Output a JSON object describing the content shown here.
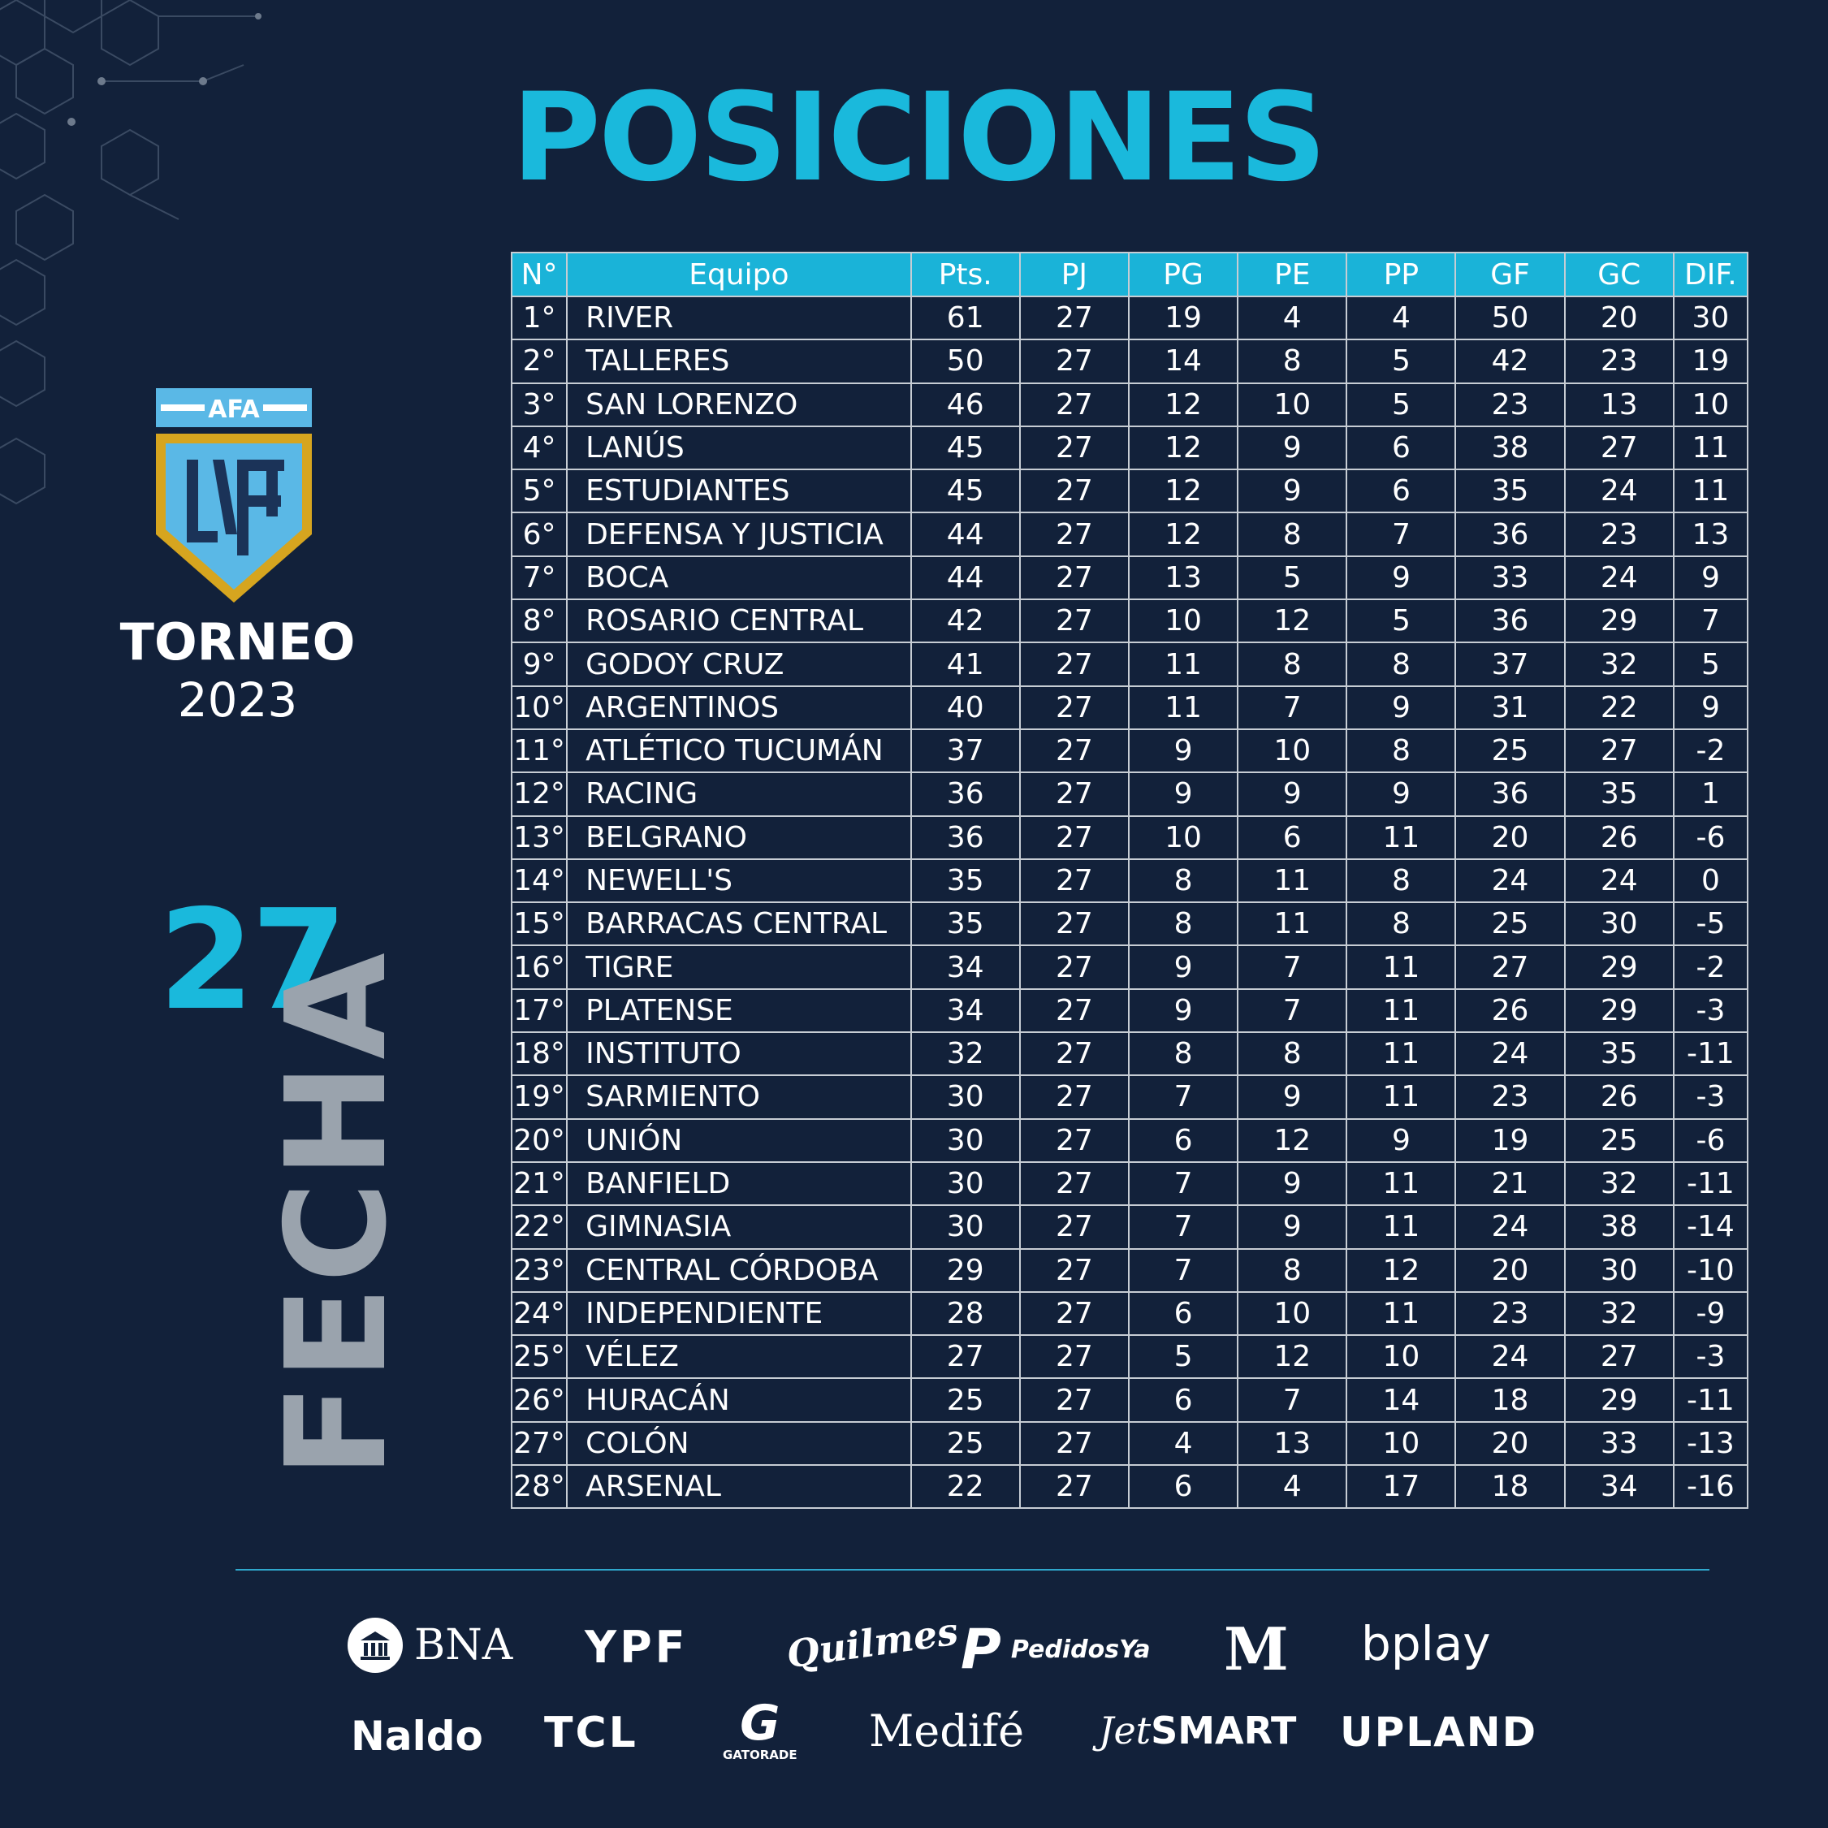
{
  "title": "POSICIONES",
  "badge": {
    "org": "AFA",
    "league": "LPF",
    "torneo": "TORNEO",
    "year": "2023"
  },
  "fecha": {
    "number": "27",
    "word": "FECHA"
  },
  "table": {
    "headers": [
      "N°",
      "Equipo",
      "Pts.",
      "PJ",
      "PG",
      "PE",
      "PP",
      "GF",
      "GC",
      "DIF."
    ],
    "rows": [
      [
        "1°",
        "RIVER",
        "61",
        "27",
        "19",
        "4",
        "4",
        "50",
        "20",
        "30"
      ],
      [
        "2°",
        "TALLERES",
        "50",
        "27",
        "14",
        "8",
        "5",
        "42",
        "23",
        "19"
      ],
      [
        "3°",
        "SAN LORENZO",
        "46",
        "27",
        "12",
        "10",
        "5",
        "23",
        "13",
        "10"
      ],
      [
        "4°",
        "LANÚS",
        "45",
        "27",
        "12",
        "9",
        "6",
        "38",
        "27",
        "11"
      ],
      [
        "5°",
        "ESTUDIANTES",
        "45",
        "27",
        "12",
        "9",
        "6",
        "35",
        "24",
        "11"
      ],
      [
        "6°",
        "DEFENSA Y JUSTICIA",
        "44",
        "27",
        "12",
        "8",
        "7",
        "36",
        "23",
        "13"
      ],
      [
        "7°",
        "BOCA",
        "44",
        "27",
        "13",
        "5",
        "9",
        "33",
        "24",
        "9"
      ],
      [
        "8°",
        "ROSARIO CENTRAL",
        "42",
        "27",
        "10",
        "12",
        "5",
        "36",
        "29",
        "7"
      ],
      [
        "9°",
        "GODOY CRUZ",
        "41",
        "27",
        "11",
        "8",
        "8",
        "37",
        "32",
        "5"
      ],
      [
        "10°",
        "ARGENTINOS",
        "40",
        "27",
        "11",
        "7",
        "9",
        "31",
        "22",
        "9"
      ],
      [
        "11°",
        "ATLÉTICO TUCUMÁN",
        "37",
        "27",
        "9",
        "10",
        "8",
        "25",
        "27",
        "-2"
      ],
      [
        "12°",
        "RACING",
        "36",
        "27",
        "9",
        "9",
        "9",
        "36",
        "35",
        "1"
      ],
      [
        "13°",
        "BELGRANO",
        "36",
        "27",
        "10",
        "6",
        "11",
        "20",
        "26",
        "-6"
      ],
      [
        "14°",
        "NEWELL'S",
        "35",
        "27",
        "8",
        "11",
        "8",
        "24",
        "24",
        "0"
      ],
      [
        "15°",
        "BARRACAS CENTRAL",
        "35",
        "27",
        "8",
        "11",
        "8",
        "25",
        "30",
        "-5"
      ],
      [
        "16°",
        "TIGRE",
        "34",
        "27",
        "9",
        "7",
        "11",
        "27",
        "29",
        "-2"
      ],
      [
        "17°",
        "PLATENSE",
        "34",
        "27",
        "9",
        "7",
        "11",
        "26",
        "29",
        "-3"
      ],
      [
        "18°",
        "INSTITUTO",
        "32",
        "27",
        "8",
        "8",
        "11",
        "24",
        "35",
        "-11"
      ],
      [
        "19°",
        "SARMIENTO",
        "30",
        "27",
        "7",
        "9",
        "11",
        "23",
        "26",
        "-3"
      ],
      [
        "20°",
        "UNIÓN",
        "30",
        "27",
        "6",
        "12",
        "9",
        "19",
        "25",
        "-6"
      ],
      [
        "21°",
        "BANFIELD",
        "30",
        "27",
        "7",
        "9",
        "11",
        "21",
        "32",
        "-11"
      ],
      [
        "22°",
        "GIMNASIA",
        "30",
        "27",
        "7",
        "9",
        "11",
        "24",
        "38",
        "-14"
      ],
      [
        "23°",
        "CENTRAL CÓRDOBA",
        "29",
        "27",
        "7",
        "8",
        "12",
        "20",
        "30",
        "-10"
      ],
      [
        "24°",
        "INDEPENDIENTE",
        "28",
        "27",
        "6",
        "10",
        "11",
        "23",
        "32",
        "-9"
      ],
      [
        "25°",
        "VÉLEZ",
        "27",
        "27",
        "5",
        "12",
        "10",
        "24",
        "27",
        "-3"
      ],
      [
        "26°",
        "HURACÁN",
        "25",
        "27",
        "6",
        "7",
        "14",
        "18",
        "29",
        "-11"
      ],
      [
        "27°",
        "COLÓN",
        "25",
        "27",
        "4",
        "13",
        "10",
        "20",
        "33",
        "-13"
      ],
      [
        "28°",
        "ARSENAL",
        "22",
        "27",
        "6",
        "4",
        "17",
        "18",
        "34",
        "-16"
      ]
    ]
  },
  "sponsors": {
    "bna": "BNA",
    "ypf": "YPF",
    "quilmes": "Quilmes",
    "pedidosya": "PedidosYa",
    "mcdonalds": "M",
    "bplay": "bplay",
    "naldo": "Naldo",
    "tcl": "TCL",
    "gatorade": "GATORADE",
    "medife": "Medifé",
    "jetsmart_jet": "Jet",
    "jetsmart_smart": "SMART",
    "upland": "UPLAND"
  },
  "colors": {
    "background": "#12213a",
    "accent": "#1ab9dc",
    "header": "#1ab3d8",
    "fecha_word": "#9aa3ad",
    "gold": "#d6a51f"
  }
}
